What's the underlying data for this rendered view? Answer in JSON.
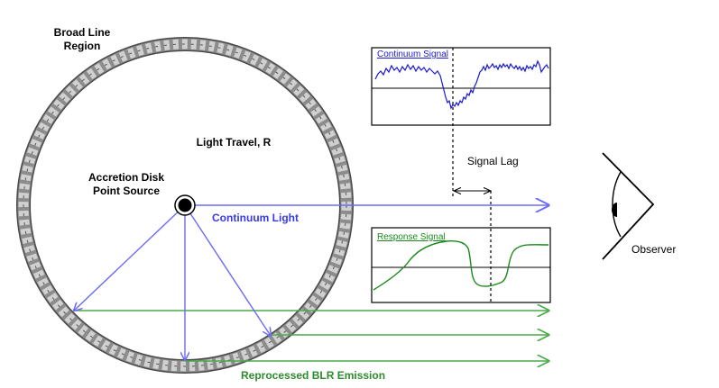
{
  "labels": {
    "blr_line1": "Broad Line",
    "blr_line2": "Region",
    "light_travel": "Light Travel, R",
    "disk_line1": "Accretion Disk",
    "disk_line2": "Point Source",
    "continuum_light": "Continuum Light",
    "signal_lag": "Signal Lag",
    "observer": "Observer",
    "reprocessed": "Reprocessed BLR Emission"
  },
  "panels": {
    "continuum": {
      "title": "Continuum Signal"
    },
    "response": {
      "title": "Response Signal"
    }
  },
  "colors": {
    "continuum": "#6b6bf5",
    "continuum_signal": "#1a1ad6",
    "reprocessed": "#4aaa4a",
    "response_signal": "#1a8a1a",
    "ring": "#8c8c8c",
    "ink": "#000000"
  }
}
